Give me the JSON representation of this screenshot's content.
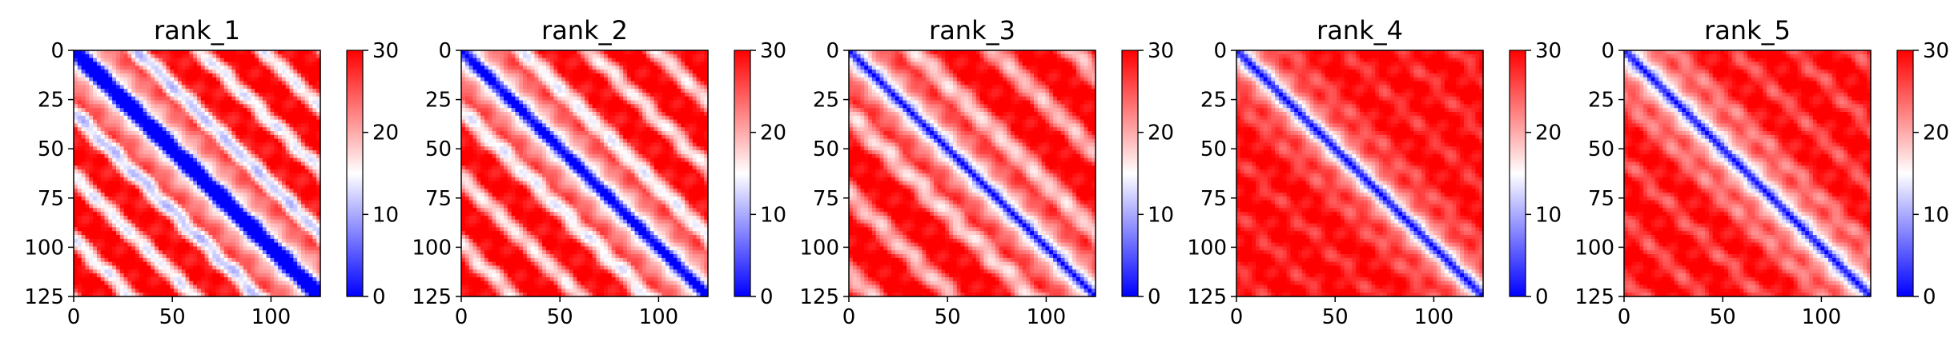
{
  "chart_data": [
    {
      "type": "heatmap",
      "title": "rank_1",
      "xticks": [
        0,
        50,
        100
      ],
      "yticks": [
        0,
        25,
        50,
        75,
        100,
        125
      ],
      "xlim": [
        0,
        125
      ],
      "ylim": [
        125,
        0
      ],
      "colorbar": {
        "ticks": [
          0,
          10,
          20,
          30
        ],
        "range": [
          0,
          30
        ],
        "cmap": "bwr"
      },
      "pattern": {
        "diag_width": 4.5,
        "period": 32,
        "amp": 3.5,
        "phase": 0.0
      }
    },
    {
      "type": "heatmap",
      "title": "rank_2",
      "xticks": [
        0,
        50,
        100
      ],
      "yticks": [
        0,
        25,
        50,
        75,
        100,
        125
      ],
      "xlim": [
        0,
        125
      ],
      "ylim": [
        125,
        0
      ],
      "colorbar": {
        "ticks": [
          0,
          10,
          20,
          30
        ],
        "range": [
          0,
          30
        ],
        "cmap": "bwr"
      },
      "pattern": {
        "diag_width": 4.0,
        "period": 34,
        "amp": 3.0,
        "phase": 0.6
      }
    },
    {
      "type": "heatmap",
      "title": "rank_3",
      "xticks": [
        0,
        50,
        100
      ],
      "yticks": [
        0,
        25,
        50,
        75,
        100,
        125
      ],
      "xlim": [
        0,
        125
      ],
      "ylim": [
        125,
        0
      ],
      "colorbar": {
        "ticks": [
          0,
          10,
          20,
          30
        ],
        "range": [
          0,
          30
        ],
        "cmap": "bwr"
      },
      "pattern": {
        "diag_width": 3.5,
        "period": 40,
        "amp": 2.5,
        "phase": 1.1
      }
    },
    {
      "type": "heatmap",
      "title": "rank_4",
      "xticks": [
        0,
        50,
        100
      ],
      "yticks": [
        0,
        25,
        50,
        75,
        100,
        125
      ],
      "xlim": [
        0,
        125
      ],
      "ylim": [
        125,
        0
      ],
      "colorbar": {
        "ticks": [
          0,
          10,
          20,
          30
        ],
        "range": [
          0,
          30
        ],
        "cmap": "bwr"
      },
      "pattern": {
        "diag_width": 3.0,
        "period": 28,
        "amp": 0.8,
        "phase": 0.3
      }
    },
    {
      "type": "heatmap",
      "title": "rank_5",
      "xticks": [
        0,
        50,
        100
      ],
      "yticks": [
        0,
        25,
        50,
        75,
        100,
        125
      ],
      "xlim": [
        0,
        125
      ],
      "ylim": [
        125,
        0
      ],
      "colorbar": {
        "ticks": [
          0,
          10,
          20,
          30
        ],
        "range": [
          0,
          30
        ],
        "cmap": "bwr"
      },
      "pattern": {
        "diag_width": 3.5,
        "period": 30,
        "amp": 1.2,
        "phase": 0.9
      }
    }
  ],
  "colors": {
    "low": "#0000ff",
    "mid": "#ffffff",
    "high": "#ff0000"
  }
}
